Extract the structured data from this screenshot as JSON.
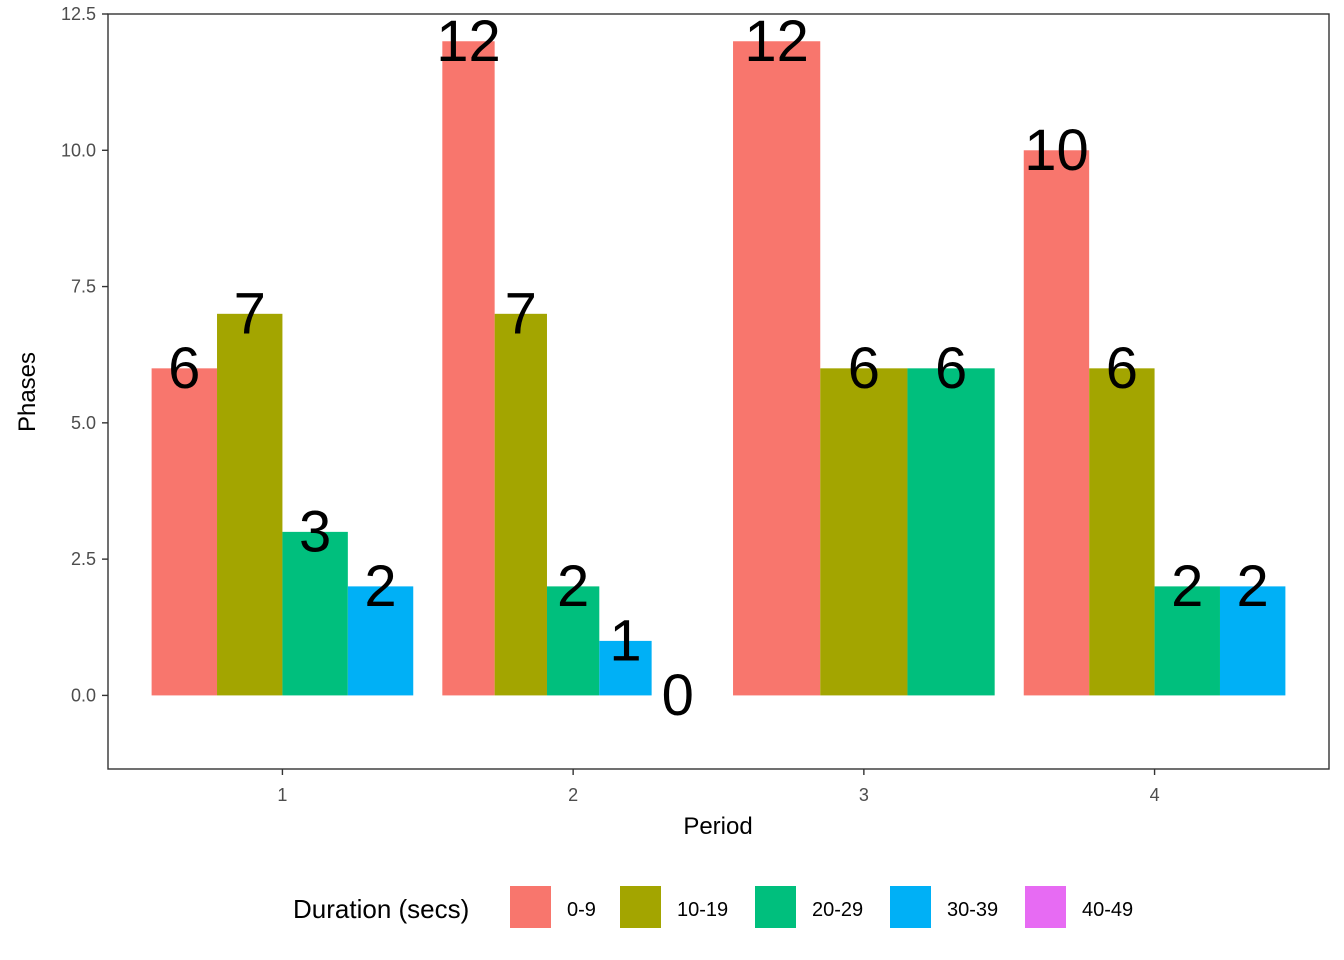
{
  "chart_data": {
    "type": "bar",
    "xlabel": "Period",
    "ylabel": "Phases",
    "ylim": [
      -1.35,
      12.5
    ],
    "yticks": [
      "0.0",
      "2.5",
      "5.0",
      "7.5",
      "10.0",
      "12.5"
    ],
    "categories": [
      "1",
      "2",
      "3",
      "4"
    ],
    "legend": {
      "title": "Duration (secs)",
      "position": "bottom",
      "items": [
        "0-9",
        "10-19",
        "20-29",
        "30-39",
        "40-49"
      ]
    },
    "colors": {
      "0-9": "#F8766D",
      "10-19": "#A3A500",
      "20-29": "#00BF7D",
      "30-39": "#00B0F6",
      "40-49": "#E76BF3"
    },
    "grid": false,
    "bars": [
      {
        "period": "1",
        "duration": "0-9",
        "value": 6,
        "label": "6"
      },
      {
        "period": "1",
        "duration": "10-19",
        "value": 7,
        "label": "7"
      },
      {
        "period": "1",
        "duration": "20-29",
        "value": 3,
        "label": "3"
      },
      {
        "period": "1",
        "duration": "30-39",
        "value": 2,
        "label": "2"
      },
      {
        "period": "2",
        "duration": "0-9",
        "value": 12,
        "label": "12"
      },
      {
        "period": "2",
        "duration": "10-19",
        "value": 7,
        "label": "7"
      },
      {
        "period": "2",
        "duration": "20-29",
        "value": 2,
        "label": "2"
      },
      {
        "period": "2",
        "duration": "30-39",
        "value": 1,
        "label": "1"
      },
      {
        "period": "2",
        "duration": "40-49",
        "value": 0,
        "label": "0"
      },
      {
        "period": "3",
        "duration": "0-9",
        "value": 12,
        "label": "12"
      },
      {
        "period": "3",
        "duration": "10-19",
        "value": 6,
        "label": "6"
      },
      {
        "period": "3",
        "duration": "20-29",
        "value": 6,
        "label": "6"
      },
      {
        "period": "4",
        "duration": "0-9",
        "value": 10,
        "label": "10"
      },
      {
        "period": "4",
        "duration": "10-19",
        "value": 6,
        "label": "6"
      },
      {
        "period": "4",
        "duration": "20-29",
        "value": 2,
        "label": "2"
      },
      {
        "period": "4",
        "duration": "30-39",
        "value": 2,
        "label": "2"
      }
    ]
  }
}
